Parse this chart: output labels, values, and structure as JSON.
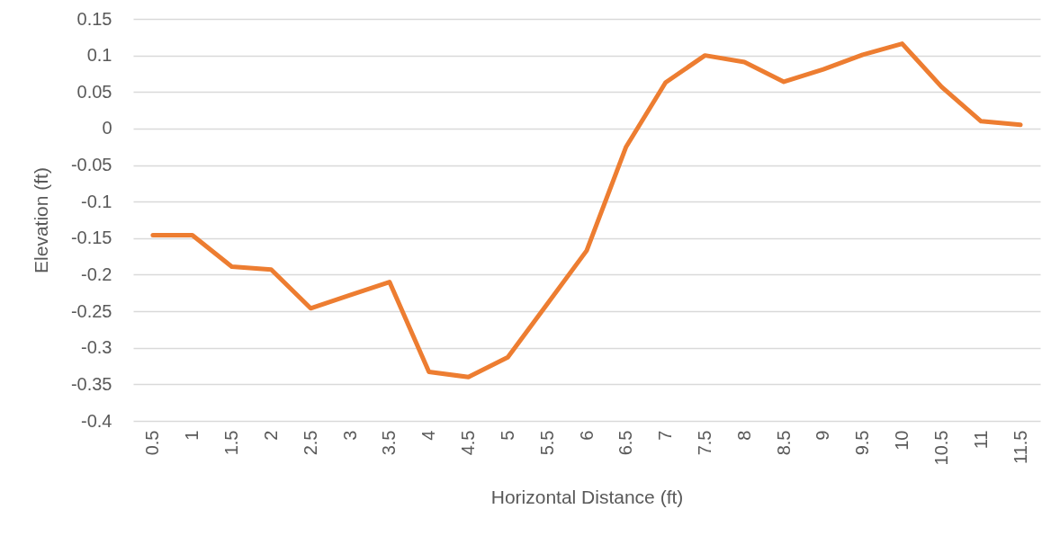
{
  "chart_data": {
    "type": "line",
    "xlabel": "Horizontal Distance (ft)",
    "ylabel": "Elevation (ft)",
    "categories": [
      "0.5",
      "1",
      "1.5",
      "2",
      "2.5",
      "3",
      "3.5",
      "4",
      "4.5",
      "5",
      "5.5",
      "6",
      "6.5",
      "7",
      "7.5",
      "8",
      "8.5",
      "9",
      "9.5",
      "10",
      "10.5",
      "11",
      "11.5"
    ],
    "series": [
      {
        "color": "#ed7d31",
        "values": [
          -0.146,
          -0.146,
          -0.189,
          -0.193,
          -0.246,
          -0.228,
          -0.21,
          -0.333,
          -0.34,
          -0.313,
          -0.24,
          -0.167,
          -0.025,
          0.063,
          0.1,
          0.091,
          0.064,
          0.081,
          0.101,
          0.116,
          0.057,
          0.01,
          0.005
        ]
      }
    ],
    "ylim": [
      -0.4,
      0.15
    ],
    "yticks": [
      0.15,
      0.1,
      0.05,
      0,
      -0.05,
      -0.1,
      -0.15,
      -0.2,
      -0.25,
      -0.3,
      -0.35,
      -0.4
    ],
    "grid": "y",
    "line_style": "solid"
  }
}
